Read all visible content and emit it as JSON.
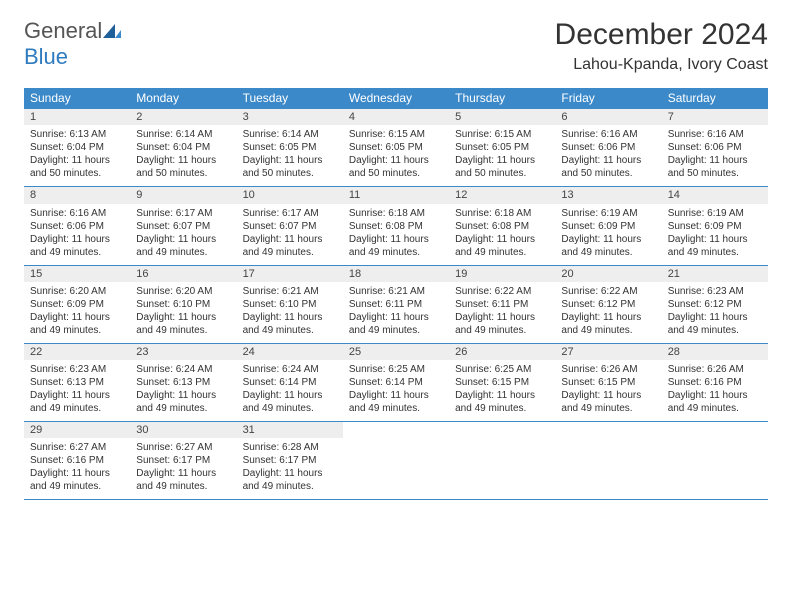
{
  "logo": {
    "text_general": "General",
    "text_blue": "Blue"
  },
  "title": "December 2024",
  "location": "Lahou-Kpanda, Ivory Coast",
  "colors": {
    "header_bg": "#3b89c9",
    "header_text": "#ffffff",
    "daynum_bg": "#eeeeee",
    "border": "#3b89c9",
    "logo_blue": "#2f7bbf",
    "logo_gray": "#555555"
  },
  "weekdays": [
    "Sunday",
    "Monday",
    "Tuesday",
    "Wednesday",
    "Thursday",
    "Friday",
    "Saturday"
  ],
  "weeks": [
    [
      {
        "day": "1",
        "sunrise": "Sunrise: 6:13 AM",
        "sunset": "Sunset: 6:04 PM",
        "daylight": "Daylight: 11 hours and 50 minutes."
      },
      {
        "day": "2",
        "sunrise": "Sunrise: 6:14 AM",
        "sunset": "Sunset: 6:04 PM",
        "daylight": "Daylight: 11 hours and 50 minutes."
      },
      {
        "day": "3",
        "sunrise": "Sunrise: 6:14 AM",
        "sunset": "Sunset: 6:05 PM",
        "daylight": "Daylight: 11 hours and 50 minutes."
      },
      {
        "day": "4",
        "sunrise": "Sunrise: 6:15 AM",
        "sunset": "Sunset: 6:05 PM",
        "daylight": "Daylight: 11 hours and 50 minutes."
      },
      {
        "day": "5",
        "sunrise": "Sunrise: 6:15 AM",
        "sunset": "Sunset: 6:05 PM",
        "daylight": "Daylight: 11 hours and 50 minutes."
      },
      {
        "day": "6",
        "sunrise": "Sunrise: 6:16 AM",
        "sunset": "Sunset: 6:06 PM",
        "daylight": "Daylight: 11 hours and 50 minutes."
      },
      {
        "day": "7",
        "sunrise": "Sunrise: 6:16 AM",
        "sunset": "Sunset: 6:06 PM",
        "daylight": "Daylight: 11 hours and 50 minutes."
      }
    ],
    [
      {
        "day": "8",
        "sunrise": "Sunrise: 6:16 AM",
        "sunset": "Sunset: 6:06 PM",
        "daylight": "Daylight: 11 hours and 49 minutes."
      },
      {
        "day": "9",
        "sunrise": "Sunrise: 6:17 AM",
        "sunset": "Sunset: 6:07 PM",
        "daylight": "Daylight: 11 hours and 49 minutes."
      },
      {
        "day": "10",
        "sunrise": "Sunrise: 6:17 AM",
        "sunset": "Sunset: 6:07 PM",
        "daylight": "Daylight: 11 hours and 49 minutes."
      },
      {
        "day": "11",
        "sunrise": "Sunrise: 6:18 AM",
        "sunset": "Sunset: 6:08 PM",
        "daylight": "Daylight: 11 hours and 49 minutes."
      },
      {
        "day": "12",
        "sunrise": "Sunrise: 6:18 AM",
        "sunset": "Sunset: 6:08 PM",
        "daylight": "Daylight: 11 hours and 49 minutes."
      },
      {
        "day": "13",
        "sunrise": "Sunrise: 6:19 AM",
        "sunset": "Sunset: 6:09 PM",
        "daylight": "Daylight: 11 hours and 49 minutes."
      },
      {
        "day": "14",
        "sunrise": "Sunrise: 6:19 AM",
        "sunset": "Sunset: 6:09 PM",
        "daylight": "Daylight: 11 hours and 49 minutes."
      }
    ],
    [
      {
        "day": "15",
        "sunrise": "Sunrise: 6:20 AM",
        "sunset": "Sunset: 6:09 PM",
        "daylight": "Daylight: 11 hours and 49 minutes."
      },
      {
        "day": "16",
        "sunrise": "Sunrise: 6:20 AM",
        "sunset": "Sunset: 6:10 PM",
        "daylight": "Daylight: 11 hours and 49 minutes."
      },
      {
        "day": "17",
        "sunrise": "Sunrise: 6:21 AM",
        "sunset": "Sunset: 6:10 PM",
        "daylight": "Daylight: 11 hours and 49 minutes."
      },
      {
        "day": "18",
        "sunrise": "Sunrise: 6:21 AM",
        "sunset": "Sunset: 6:11 PM",
        "daylight": "Daylight: 11 hours and 49 minutes."
      },
      {
        "day": "19",
        "sunrise": "Sunrise: 6:22 AM",
        "sunset": "Sunset: 6:11 PM",
        "daylight": "Daylight: 11 hours and 49 minutes."
      },
      {
        "day": "20",
        "sunrise": "Sunrise: 6:22 AM",
        "sunset": "Sunset: 6:12 PM",
        "daylight": "Daylight: 11 hours and 49 minutes."
      },
      {
        "day": "21",
        "sunrise": "Sunrise: 6:23 AM",
        "sunset": "Sunset: 6:12 PM",
        "daylight": "Daylight: 11 hours and 49 minutes."
      }
    ],
    [
      {
        "day": "22",
        "sunrise": "Sunrise: 6:23 AM",
        "sunset": "Sunset: 6:13 PM",
        "daylight": "Daylight: 11 hours and 49 minutes."
      },
      {
        "day": "23",
        "sunrise": "Sunrise: 6:24 AM",
        "sunset": "Sunset: 6:13 PM",
        "daylight": "Daylight: 11 hours and 49 minutes."
      },
      {
        "day": "24",
        "sunrise": "Sunrise: 6:24 AM",
        "sunset": "Sunset: 6:14 PM",
        "daylight": "Daylight: 11 hours and 49 minutes."
      },
      {
        "day": "25",
        "sunrise": "Sunrise: 6:25 AM",
        "sunset": "Sunset: 6:14 PM",
        "daylight": "Daylight: 11 hours and 49 minutes."
      },
      {
        "day": "26",
        "sunrise": "Sunrise: 6:25 AM",
        "sunset": "Sunset: 6:15 PM",
        "daylight": "Daylight: 11 hours and 49 minutes."
      },
      {
        "day": "27",
        "sunrise": "Sunrise: 6:26 AM",
        "sunset": "Sunset: 6:15 PM",
        "daylight": "Daylight: 11 hours and 49 minutes."
      },
      {
        "day": "28",
        "sunrise": "Sunrise: 6:26 AM",
        "sunset": "Sunset: 6:16 PM",
        "daylight": "Daylight: 11 hours and 49 minutes."
      }
    ],
    [
      {
        "day": "29",
        "sunrise": "Sunrise: 6:27 AM",
        "sunset": "Sunset: 6:16 PM",
        "daylight": "Daylight: 11 hours and 49 minutes."
      },
      {
        "day": "30",
        "sunrise": "Sunrise: 6:27 AM",
        "sunset": "Sunset: 6:17 PM",
        "daylight": "Daylight: 11 hours and 49 minutes."
      },
      {
        "day": "31",
        "sunrise": "Sunrise: 6:28 AM",
        "sunset": "Sunset: 6:17 PM",
        "daylight": "Daylight: 11 hours and 49 minutes."
      },
      {
        "empty": true
      },
      {
        "empty": true
      },
      {
        "empty": true
      },
      {
        "empty": true
      }
    ]
  ]
}
